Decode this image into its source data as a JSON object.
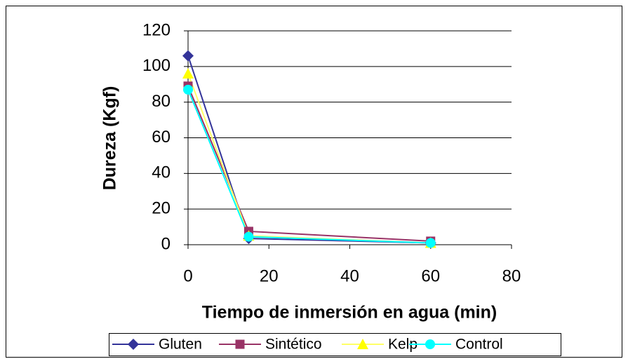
{
  "chart_data": {
    "type": "line",
    "x_label": "Tiempo de inmersión en agua (min)",
    "y_label": "Dureza (Kgf)",
    "x": [
      0,
      15,
      60
    ],
    "series": [
      {
        "name": "Gluten",
        "color": "#333399",
        "marker": "diamond",
        "values": [
          106,
          3.5,
          1
        ]
      },
      {
        "name": "Sintético",
        "color": "#993366",
        "marker": "square",
        "values": [
          89,
          7.5,
          2
        ]
      },
      {
        "name": "Kelp",
        "color": "#ffff66",
        "marker": "triangle",
        "values": [
          96,
          5,
          1
        ]
      },
      {
        "name": "Control",
        "color": "#00ffff",
        "marker": "circle",
        "values": [
          87,
          4.5,
          1
        ]
      }
    ],
    "xlim": [
      0,
      80
    ],
    "xticks": [
      0,
      20,
      40,
      60,
      80
    ],
    "ylim": [
      0,
      120
    ],
    "yticks": [
      0,
      20,
      40,
      60,
      80,
      100,
      120
    ],
    "grid": true,
    "legend": "bottom"
  }
}
